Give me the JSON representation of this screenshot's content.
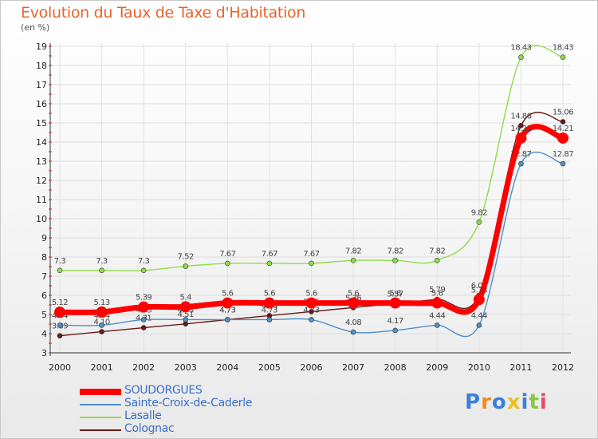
{
  "title": "Evolution du Taux de Taxe d'Habitation",
  "subtitle": "(en %)",
  "logo": "Proxiti",
  "chart_data": {
    "type": "line",
    "title": "Evolution du Taux de Taxe d'Habitation",
    "ylabel": "(en %)",
    "xlabel": "",
    "ylim": [
      3,
      19
    ],
    "yticks": [
      3,
      4,
      5,
      6,
      7,
      8,
      9,
      10,
      11,
      12,
      13,
      14,
      15,
      16,
      17,
      18,
      19
    ],
    "x": [
      "2000",
      "2001",
      "2002",
      "2003",
      "2004",
      "2005",
      "2006",
      "2007",
      "2008",
      "2009",
      "2010",
      "2011",
      "2012"
    ],
    "legend_position": "bottom-left",
    "series": [
      {
        "name": "Colognac",
        "color": "#6b1717",
        "values": [
          3.89,
          4.1,
          4.31,
          4.51,
          4.73,
          4.94,
          5.15,
          5.36,
          5.57,
          5.79,
          6.0,
          14.86,
          15.06
        ],
        "labels": [
          "3.89",
          "4.10",
          "4.31",
          "4.51",
          "4.73",
          "4.94",
          "5.15",
          "5.36",
          "5.57",
          "5.79",
          "6.00",
          "14.86",
          "15.06"
        ]
      },
      {
        "name": "Sainte-Croix-de-Caderle",
        "color": "#4f8fc7",
        "values": [
          4.44,
          4.44,
          4.73,
          4.73,
          4.73,
          4.73,
          4.73,
          4.08,
          4.17,
          4.44,
          4.44,
          12.87,
          12.87
        ],
        "labels": [
          "4.44",
          "4.44",
          "4.73",
          "4.73",
          "4.73",
          "4.73",
          "4.73",
          "4.08",
          "4.17",
          "4.44",
          "4.44",
          "12.87",
          "12.87"
        ]
      },
      {
        "name": "Lasalle",
        "color": "#8fdc4a",
        "values": [
          7.3,
          7.3,
          7.3,
          7.52,
          7.67,
          7.67,
          7.67,
          7.82,
          7.82,
          7.82,
          9.82,
          18.43,
          18.43
        ],
        "labels": [
          "7.3",
          "7.3",
          "7.3",
          "7.52",
          "7.67",
          "7.67",
          "7.67",
          "7.82",
          "7.82",
          "7.82",
          "9.82",
          "18.43",
          "18.43"
        ]
      },
      {
        "name": "SOUDORGUES",
        "color": "#ff0000",
        "values": [
          5.12,
          5.13,
          5.39,
          5.4,
          5.6,
          5.6,
          5.6,
          5.6,
          5.6,
          5.6,
          5.78,
          14.21,
          14.21
        ],
        "labels": [
          "5.12",
          "5.13",
          "5.39",
          "5.4",
          "5.6",
          "5.6",
          "5.6",
          "5.6",
          "5.6",
          "5.6",
          "5.78",
          "14.21",
          "14.21"
        ]
      }
    ]
  }
}
